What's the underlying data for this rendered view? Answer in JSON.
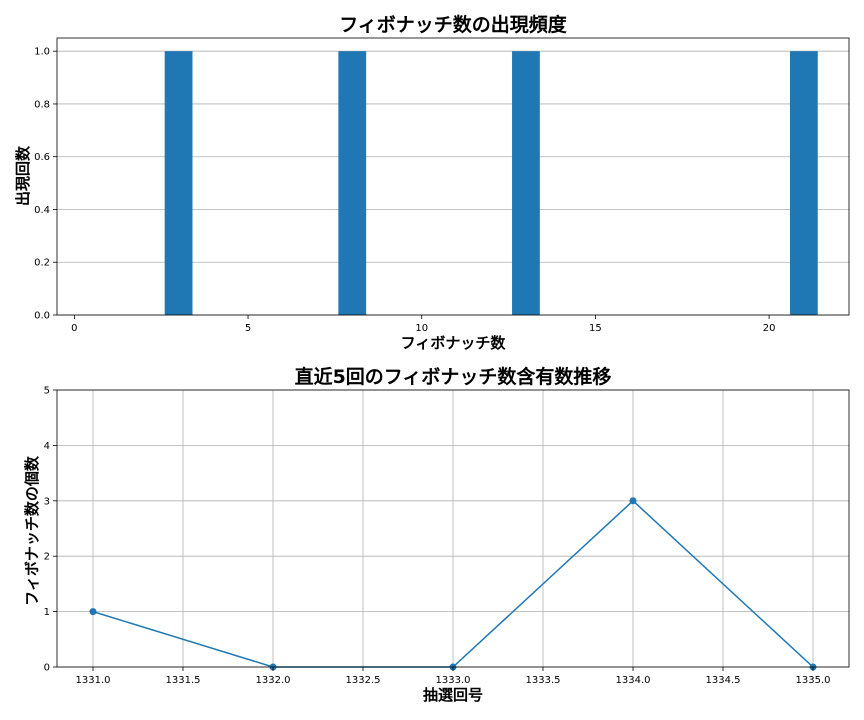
{
  "chart_data": [
    {
      "type": "bar",
      "title": "フィボナッチ数の出現頻度",
      "xlabel": "フィボナッチ数",
      "ylabel": "出現回数",
      "x": [
        3,
        8,
        13,
        21
      ],
      "values": [
        1,
        1,
        1,
        1
      ],
      "bar_width": 0.8,
      "xlim": [
        -0.5,
        22.3
      ],
      "ylim": [
        0,
        1.05
      ],
      "xticks": [
        0,
        5,
        10,
        15,
        20
      ],
      "xtick_labels": [
        "0",
        "5",
        "10",
        "15",
        "20"
      ],
      "yticks": [
        0,
        0.2,
        0.4,
        0.6,
        0.8,
        1.0
      ],
      "ytick_labels": [
        "0.0",
        "0.2",
        "0.4",
        "0.6",
        "0.8",
        "1.0"
      ],
      "grid": "y",
      "color": "#1f77b4"
    },
    {
      "type": "line",
      "title": "直近5回のフィボナッチ数含有数推移",
      "xlabel": "抽選回号",
      "ylabel": "フィボナッチ数の個数",
      "x": [
        1331,
        1332,
        1333,
        1334,
        1335
      ],
      "values": [
        1,
        0,
        0,
        3,
        0
      ],
      "markers": true,
      "xlim": [
        1330.8,
        1335.2
      ],
      "ylim": [
        0,
        5
      ],
      "xticks": [
        1331,
        1331.5,
        1332,
        1332.5,
        1333,
        1333.5,
        1334,
        1334.5,
        1335
      ],
      "xtick_labels": [
        "1331.0",
        "1331.5",
        "1332.0",
        "1332.5",
        "1333.0",
        "1333.5",
        "1334.0",
        "1334.5",
        "1335.0"
      ],
      "yticks": [
        0,
        1,
        2,
        3,
        4,
        5
      ],
      "ytick_labels": [
        "0",
        "1",
        "2",
        "3",
        "4",
        "5"
      ],
      "grid": "both",
      "color": "#1f77b4"
    }
  ]
}
